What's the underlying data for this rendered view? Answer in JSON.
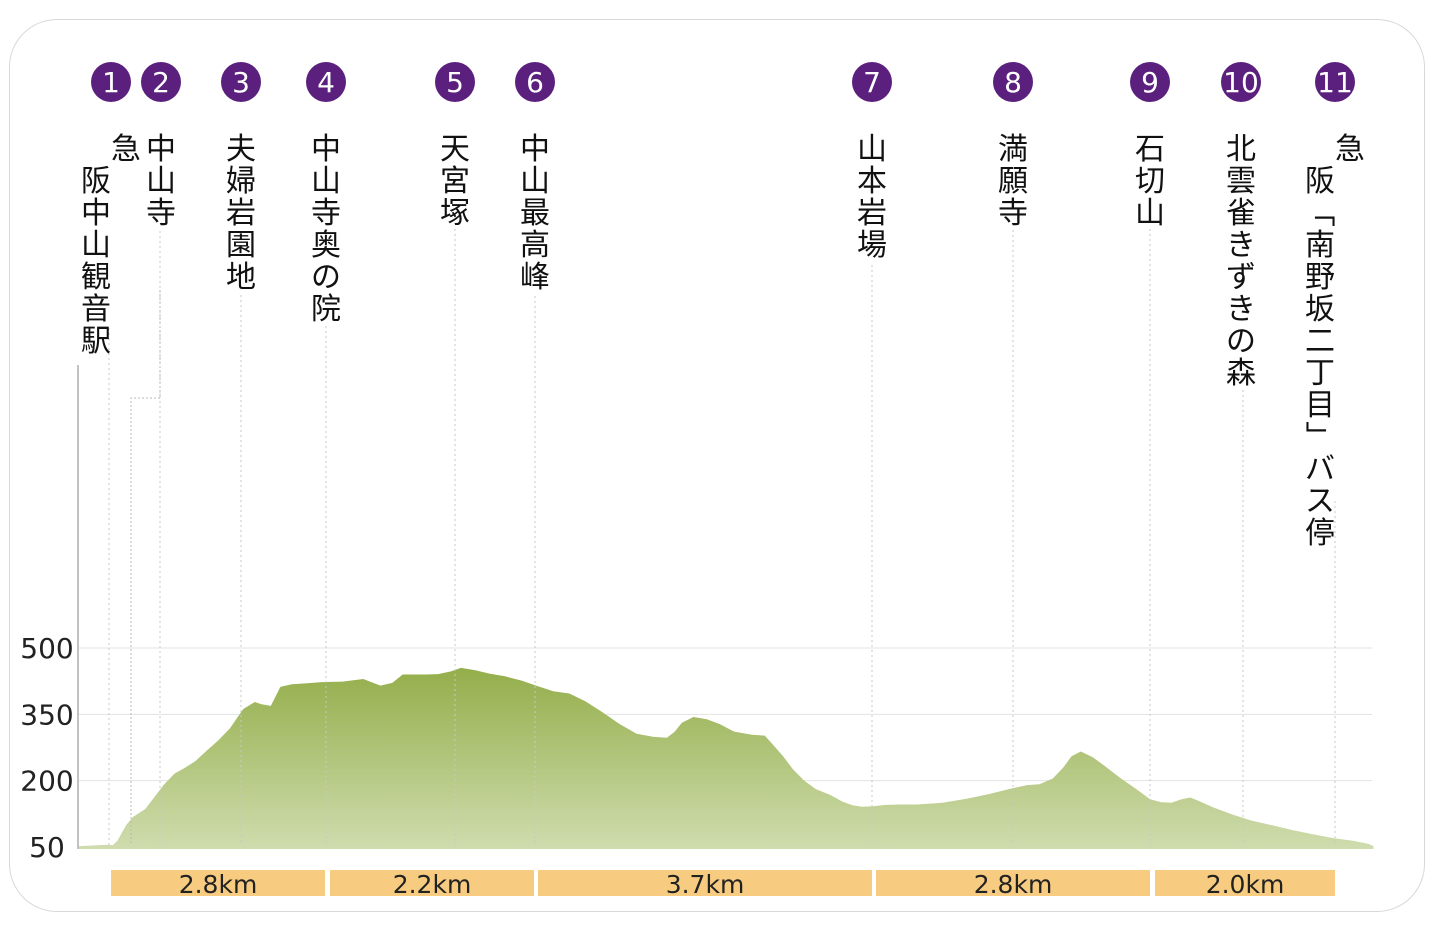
{
  "chart_data": {
    "type": "area",
    "title": "",
    "xlabel": "",
    "ylabel": "",
    "ylim": [
      50,
      500
    ],
    "y_ticks": [
      "50",
      "200",
      "350",
      "500"
    ],
    "grid": true,
    "colors": {
      "fill_top": "#94ae4a",
      "fill_bottom": "#cfdcae",
      "badge": "#5b1f7e",
      "segment": "#f8cc80"
    },
    "stops": [
      {
        "num": "1",
        "label": "阪急中山観音駅",
        "cols": [
          "急",
          "阪中山観音駅"
        ]
      },
      {
        "num": "2",
        "label": "中山寺",
        "cols": [
          "中山寺"
        ]
      },
      {
        "num": "3",
        "label": "夫婦岩園地",
        "cols": [
          "夫婦岩園地"
        ]
      },
      {
        "num": "4",
        "label": "中山寺奥の院",
        "cols": [
          "中山寺奥の院"
        ]
      },
      {
        "num": "5",
        "label": "天宮塚",
        "cols": [
          "天宮塚"
        ]
      },
      {
        "num": "6",
        "label": "中山最高峰",
        "cols": [
          "中山最高峰"
        ]
      },
      {
        "num": "7",
        "label": "山本岩場",
        "cols": [
          "山本岩場"
        ]
      },
      {
        "num": "8",
        "label": "満願寺",
        "cols": [
          "満願寺"
        ]
      },
      {
        "num": "9",
        "label": "石切山",
        "cols": [
          "石切山"
        ]
      },
      {
        "num": "10",
        "label": "北雲雀きずきの森",
        "cols": [
          "北雲雀きずきの森"
        ]
      },
      {
        "num": "11",
        "label": "阪急「南野坂二丁目」バス停",
        "cols": [
          "急",
          "阪「南野坂二丁目」バス停"
        ]
      }
    ],
    "segments": [
      {
        "label": "2.8km"
      },
      {
        "label": "2.2km"
      },
      {
        "label": "3.7km"
      },
      {
        "label": "2.8km"
      },
      {
        "label": "2.0km"
      }
    ],
    "profile_elevation": [
      [
        0.0,
        52
      ],
      [
        2.7,
        55
      ],
      [
        3.08,
        54
      ],
      [
        3.5,
        64
      ],
      [
        4.31,
        100
      ],
      [
        4.93,
        118
      ],
      [
        6.04,
        136
      ],
      [
        6.81,
        161
      ],
      [
        7.73,
        191
      ],
      [
        8.7,
        216
      ],
      [
        9.65,
        229
      ],
      [
        10.58,
        244
      ],
      [
        11.59,
        267
      ],
      [
        12.69,
        291
      ],
      [
        13.73,
        318
      ],
      [
        14.96,
        362
      ],
      [
        16.01,
        378
      ],
      [
        16.62,
        373
      ],
      [
        17.47,
        369
      ],
      [
        18.34,
        412
      ],
      [
        19.38,
        418
      ],
      [
        20.62,
        420
      ],
      [
        22.1,
        423
      ],
      [
        24.01,
        424
      ],
      [
        25.89,
        430
      ],
      [
        27.45,
        415
      ],
      [
        28.53,
        421
      ],
      [
        29.48,
        440
      ],
      [
        31.54,
        440
      ],
      [
        32.7,
        441
      ],
      [
        33.88,
        447
      ],
      [
        34.78,
        455
      ],
      [
        36.05,
        450
      ],
      [
        37.38,
        442
      ],
      [
        38.8,
        436
      ],
      [
        40.35,
        426
      ],
      [
        41.87,
        413
      ],
      [
        43.2,
        402
      ],
      [
        44.65,
        397
      ],
      [
        46.09,
        380
      ],
      [
        47.66,
        355
      ],
      [
        49.24,
        328
      ],
      [
        50.79,
        306
      ],
      [
        52.33,
        299
      ],
      [
        53.54,
        297
      ],
      [
        54.23,
        310
      ],
      [
        54.91,
        331
      ],
      [
        55.96,
        344
      ],
      [
        57.18,
        339
      ],
      [
        58.36,
        328
      ],
      [
        59.66,
        311
      ],
      [
        61.29,
        304
      ],
      [
        62.46,
        302
      ],
      [
        63.29,
        279
      ],
      [
        64.16,
        254
      ],
      [
        65.02,
        226
      ],
      [
        66.06,
        200
      ],
      [
        67.1,
        181
      ],
      [
        68.39,
        168
      ],
      [
        69.57,
        152
      ],
      [
        70.49,
        144
      ],
      [
        71.34,
        141
      ],
      [
        72.33,
        142
      ],
      [
        73.35,
        145
      ],
      [
        74.69,
        146
      ],
      [
        76.36,
        146
      ],
      [
        78.63,
        150
      ],
      [
        80.84,
        159
      ],
      [
        82.95,
        170
      ],
      [
        84.88,
        182
      ],
      [
        86.35,
        190
      ],
      [
        87.47,
        192
      ],
      [
        88.69,
        205
      ],
      [
        89.63,
        229
      ],
      [
        90.39,
        255
      ],
      [
        91.24,
        266
      ],
      [
        92.33,
        253
      ],
      [
        93.48,
        232
      ],
      [
        94.84,
        206
      ],
      [
        96.35,
        180
      ],
      [
        97.55,
        158
      ],
      [
        98.57,
        151
      ],
      [
        99.48,
        150
      ],
      [
        100.42,
        158
      ],
      [
        101.22,
        162
      ],
      [
        101.91,
        155
      ],
      [
        103.27,
        140
      ],
      [
        104.97,
        124
      ],
      [
        106.74,
        110
      ],
      [
        108.66,
        99
      ],
      [
        110.58,
        88
      ],
      [
        112.53,
        78
      ],
      [
        114.32,
        70
      ],
      [
        116.02,
        64
      ],
      [
        117.43,
        57
      ],
      [
        117.9,
        52
      ]
    ]
  }
}
